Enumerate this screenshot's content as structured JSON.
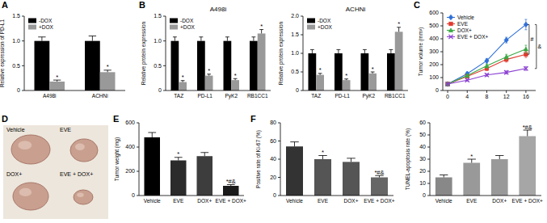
{
  "chart_data": [
    {
      "type": "bar",
      "panel": "A",
      "y_label": "Relative expression of PD-L1",
      "categories": [
        "A498i",
        "ACHNi"
      ],
      "series": [
        {
          "name": "-DOX",
          "color": "#000000",
          "values": [
            1,
            1
          ],
          "errors": [
            0.08,
            0.1
          ]
        },
        {
          "name": "+DOX",
          "color": "#999999",
          "values": [
            0.18,
            0.37
          ],
          "errors": [
            0.03,
            0.04
          ],
          "annotations": [
            "*",
            "*"
          ]
        }
      ],
      "ylim": [
        0,
        1.5
      ],
      "yticks": [
        0,
        0.5,
        {
          "value": 1,
          "label": "1.0"
        },
        1.5
      ],
      "legend": "upper left"
    },
    {
      "type": "bar",
      "panel": "B",
      "title": "A498i",
      "y_label": "Relative protein expression",
      "categories": [
        "TAZ",
        "PD-L1",
        "PyK2",
        "RB1CC1"
      ],
      "series": [
        {
          "name": "-DOX",
          "color": "#000000",
          "values": [
            1,
            1,
            1,
            1
          ],
          "errors": [
            0.08,
            0.08,
            0.08,
            0.08
          ]
        },
        {
          "name": "+DOX",
          "color": "#999999",
          "values": [
            0.17,
            0.3,
            0.21,
            1.15
          ],
          "errors": [
            0.03,
            0.03,
            0.03,
            0.08
          ],
          "annotations": [
            "*",
            "*",
            "*",
            "*"
          ]
        }
      ],
      "ylim": [
        0,
        1.5
      ],
      "yticks": [
        0,
        0.5,
        {
          "value": 1,
          "label": "1.0"
        },
        1.5
      ],
      "legend": "upper left"
    },
    {
      "type": "bar",
      "title": "ACHNi",
      "y_label": "Relative protein expression",
      "categories": [
        "TAZ",
        "PD-L1",
        "PyK2",
        "RB1CC1"
      ],
      "series": [
        {
          "name": "-DOX",
          "color": "#000000",
          "values": [
            1,
            1,
            1,
            1
          ],
          "errors": [
            0.1,
            0.1,
            0.1,
            0.1
          ]
        },
        {
          "name": "+DOX",
          "color": "#999999",
          "values": [
            0.42,
            0.28,
            0.46,
            1.58
          ],
          "errors": [
            0.04,
            0.03,
            0.04,
            0.12
          ],
          "annotations": [
            "*",
            "*",
            "*",
            "*"
          ]
        }
      ],
      "ylim": [
        0,
        2
      ],
      "yticks": [
        0,
        0.5,
        {
          "value": 1,
          "label": "1.0"
        },
        1.5,
        {
          "value": 2,
          "label": "2.0"
        }
      ],
      "legend": "upper left"
    },
    {
      "type": "line",
      "panel": "C",
      "y_label": "Tumor volume (mm³)",
      "x": [
        0,
        4,
        8,
        12,
        16
      ],
      "series": [
        {
          "name": "Vehicle",
          "color": "#2e6fd8",
          "marker": "diamond",
          "values": [
            50,
            130,
            230,
            390,
            510
          ],
          "errors": [
            5,
            12,
            18,
            22,
            40
          ]
        },
        {
          "name": "EVE",
          "color": "#e03a2f",
          "marker": "square",
          "values": [
            50,
            110,
            170,
            240,
            280
          ],
          "errors": [
            5,
            10,
            15,
            20,
            25
          ]
        },
        {
          "name": "DOX+",
          "color": "#3aa843",
          "marker": "triangle",
          "values": [
            50,
            115,
            190,
            260,
            320
          ],
          "errors": [
            5,
            10,
            15,
            20,
            30
          ]
        },
        {
          "name": "EVE + DOX+",
          "color": "#8a3fd1",
          "marker": "x",
          "values": [
            50,
            80,
            120,
            140,
            170
          ],
          "errors": [
            5,
            8,
            10,
            12,
            15
          ]
        }
      ],
      "xlim": [
        -1,
        18
      ],
      "xticks": [
        0,
        4,
        8,
        12,
        16
      ],
      "ylim": [
        0,
        600
      ],
      "yticks": [
        0,
        100,
        200,
        300,
        400,
        500,
        600
      ],
      "legend": "upper left",
      "annotations": [
        "#",
        "&"
      ]
    },
    {
      "type": "bar",
      "panel": "E",
      "y_label": "Tumor weight (mg)",
      "categories": [
        "Vehicle",
        "EVE",
        "DOX+",
        "EVE + DOX+"
      ],
      "values": [
        480,
        290,
        325,
        80
      ],
      "errors": [
        40,
        25,
        30,
        10
      ],
      "colors": [
        "#000000",
        "#2b2b2b",
        "#3d3d3d",
        "#1a1a1a"
      ],
      "annotations": [
        null,
        "*",
        null,
        "*#&"
      ],
      "ylim": [
        0,
        600
      ],
      "yticks": [
        0,
        200,
        400,
        600
      ]
    },
    {
      "type": "bar",
      "panel": "F",
      "y_label": "Positive rate of Ki-67 (%)",
      "categories": [
        "Vehicle",
        "EVE",
        "DOX+",
        "EVE + DOX+"
      ],
      "values": [
        54,
        40,
        37,
        20
      ],
      "errors": [
        5,
        4,
        4,
        2
      ],
      "colors": [
        "#333333",
        "#555555",
        "#555555",
        "#666666"
      ],
      "annotations": [
        null,
        "*",
        null,
        "*#&"
      ],
      "ylim": [
        0,
        80
      ],
      "yticks": [
        0,
        20,
        40,
        60,
        80
      ]
    },
    {
      "type": "bar",
      "y_label": "TUNEL-apoptosis rate (%)",
      "categories": [
        "Vehicle",
        "EVE",
        "DOX+",
        "EVE + DOX+"
      ],
      "values": [
        15,
        27,
        30,
        49
      ],
      "errors": [
        2,
        3,
        3,
        5
      ],
      "colors": [
        "#888888",
        "#999999",
        "#999999",
        "#a6a6a6"
      ],
      "annotations": [
        null,
        "*",
        null,
        "*#&"
      ],
      "ylim": [
        0,
        60
      ],
      "yticks": [
        0,
        10,
        20,
        30,
        40,
        50,
        60
      ]
    }
  ],
  "photo_panel": {
    "panel": "D",
    "labels": [
      "Vehicle",
      "EVE",
      "DOX+",
      "EVE + DOX+"
    ]
  }
}
